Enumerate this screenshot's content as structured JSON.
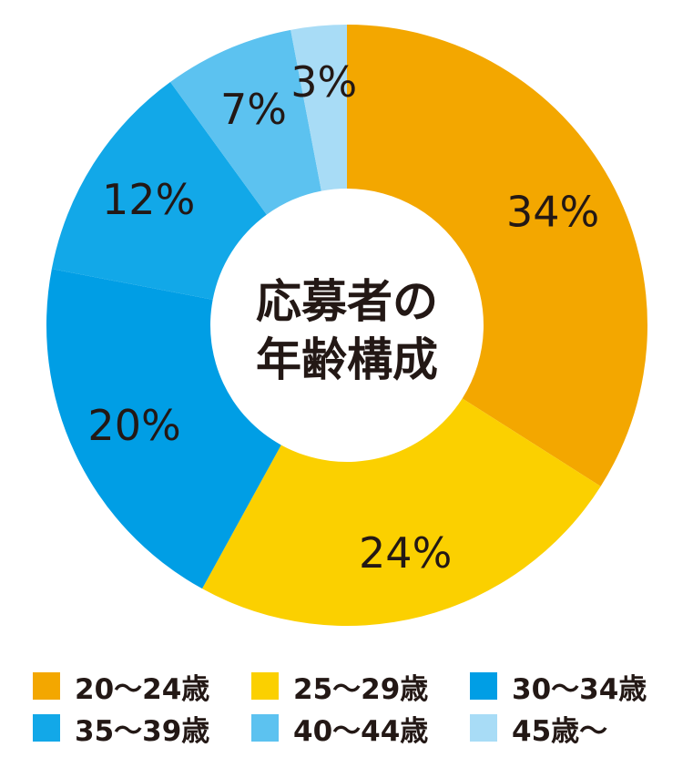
{
  "chart_data": {
    "type": "pie",
    "variant": "donut",
    "title": "応募者の年齢構成",
    "title_lines": [
      "応募者の",
      "年齢構成"
    ],
    "categories": [
      "20〜24歳",
      "25〜29歳",
      "30〜34歳",
      "35〜39歳",
      "40〜44歳",
      "45歳〜"
    ],
    "values": [
      34,
      24,
      20,
      12,
      7,
      3
    ],
    "value_labels": [
      "34%",
      "24%",
      "20%",
      "12%",
      "7%",
      "3%"
    ],
    "colors": [
      "#f3a700",
      "#fbd000",
      "#009ee5",
      "#12a8e8",
      "#5cc2f0",
      "#a8dcf6"
    ],
    "start_angle": "12 o'clock",
    "direction": "clockwise",
    "legend": {
      "placement": "bottom",
      "columns": 3,
      "items": [
        {
          "label": "20〜24歳",
          "color": "#f3a700"
        },
        {
          "label": "25〜29歳",
          "color": "#fbd000"
        },
        {
          "label": "30〜34歳",
          "color": "#009ee5"
        },
        {
          "label": "35〜39歳",
          "color": "#12a8e8"
        },
        {
          "label": "40〜44歳",
          "color": "#5cc2f0"
        },
        {
          "label": "45歳〜",
          "color": "#a8dcf6"
        }
      ]
    }
  }
}
